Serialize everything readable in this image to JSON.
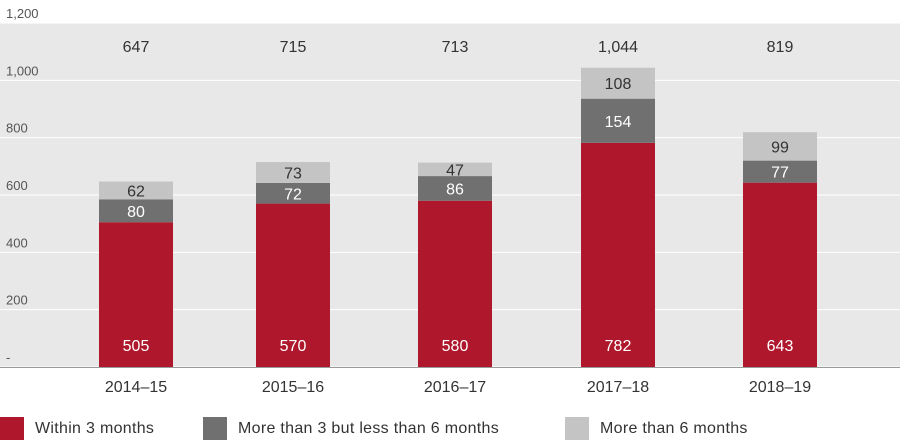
{
  "chart_data": {
    "type": "bar",
    "stacked": true,
    "categories": [
      "2014–15",
      "2015–16",
      "2016–17",
      "2017–18",
      "2018–19"
    ],
    "series": [
      {
        "name": "Within 3 months",
        "values": [
          505,
          570,
          580,
          782,
          643
        ],
        "color": "#ae172c"
      },
      {
        "name": "More than 3 but less than 6 months",
        "values": [
          80,
          72,
          86,
          154,
          77
        ],
        "color": "#707070"
      },
      {
        "name": "More than 6 months",
        "values": [
          62,
          73,
          47,
          108,
          99
        ],
        "color": "#c4c4c4"
      }
    ],
    "totals": [
      "647",
      "715",
      "713",
      "1,044",
      "819"
    ],
    "y_ticks": [
      "-",
      "200",
      "400",
      "600",
      "800",
      "1,000",
      "1,200"
    ],
    "ylim": [
      0,
      1200
    ],
    "grid": true,
    "legend_position": "bottom",
    "plot_background": "#e8e8e8"
  }
}
